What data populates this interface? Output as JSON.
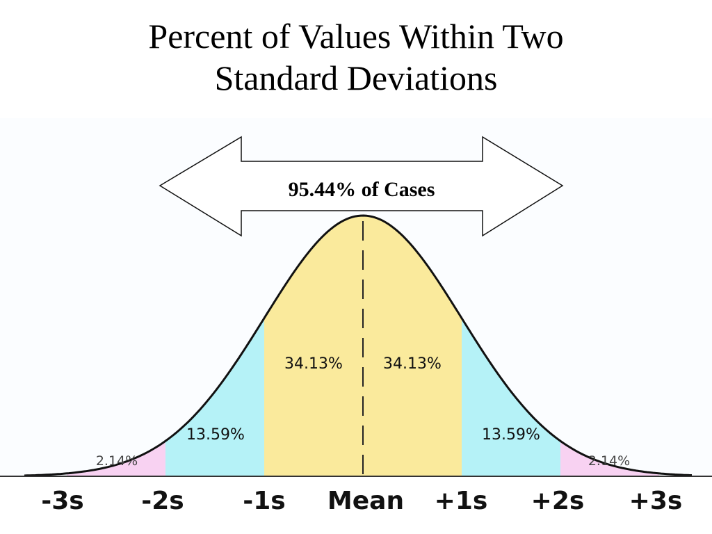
{
  "title": {
    "line1": "Percent of Values Within Two",
    "line2": "Standard Deviations"
  },
  "arrow": {
    "label": "95.44% of Cases",
    "from": "-2s",
    "to": "+2s"
  },
  "curve": {
    "type": "normal-distribution",
    "regions": [
      {
        "from": -3,
        "to": -2,
        "label": "2.14%",
        "color": "#F8D2F2"
      },
      {
        "from": -2,
        "to": -1,
        "label": "13.59%",
        "color": "#B5F2F7"
      },
      {
        "from": -1,
        "to": 0,
        "label": "34.13%",
        "color": "#FAEA9C"
      },
      {
        "from": 0,
        "to": 1,
        "label": "34.13%",
        "color": "#FAEA9C"
      },
      {
        "from": 1,
        "to": 2,
        "label": "13.59%",
        "color": "#B5F2F7"
      },
      {
        "from": 2,
        "to": 3,
        "label": "2.14%",
        "color": "#F8D2F2"
      }
    ]
  },
  "axis": {
    "labels": [
      "-3s",
      "-2s",
      "-1s",
      "Mean",
      "+1s",
      "+2s",
      "+3s"
    ]
  }
}
